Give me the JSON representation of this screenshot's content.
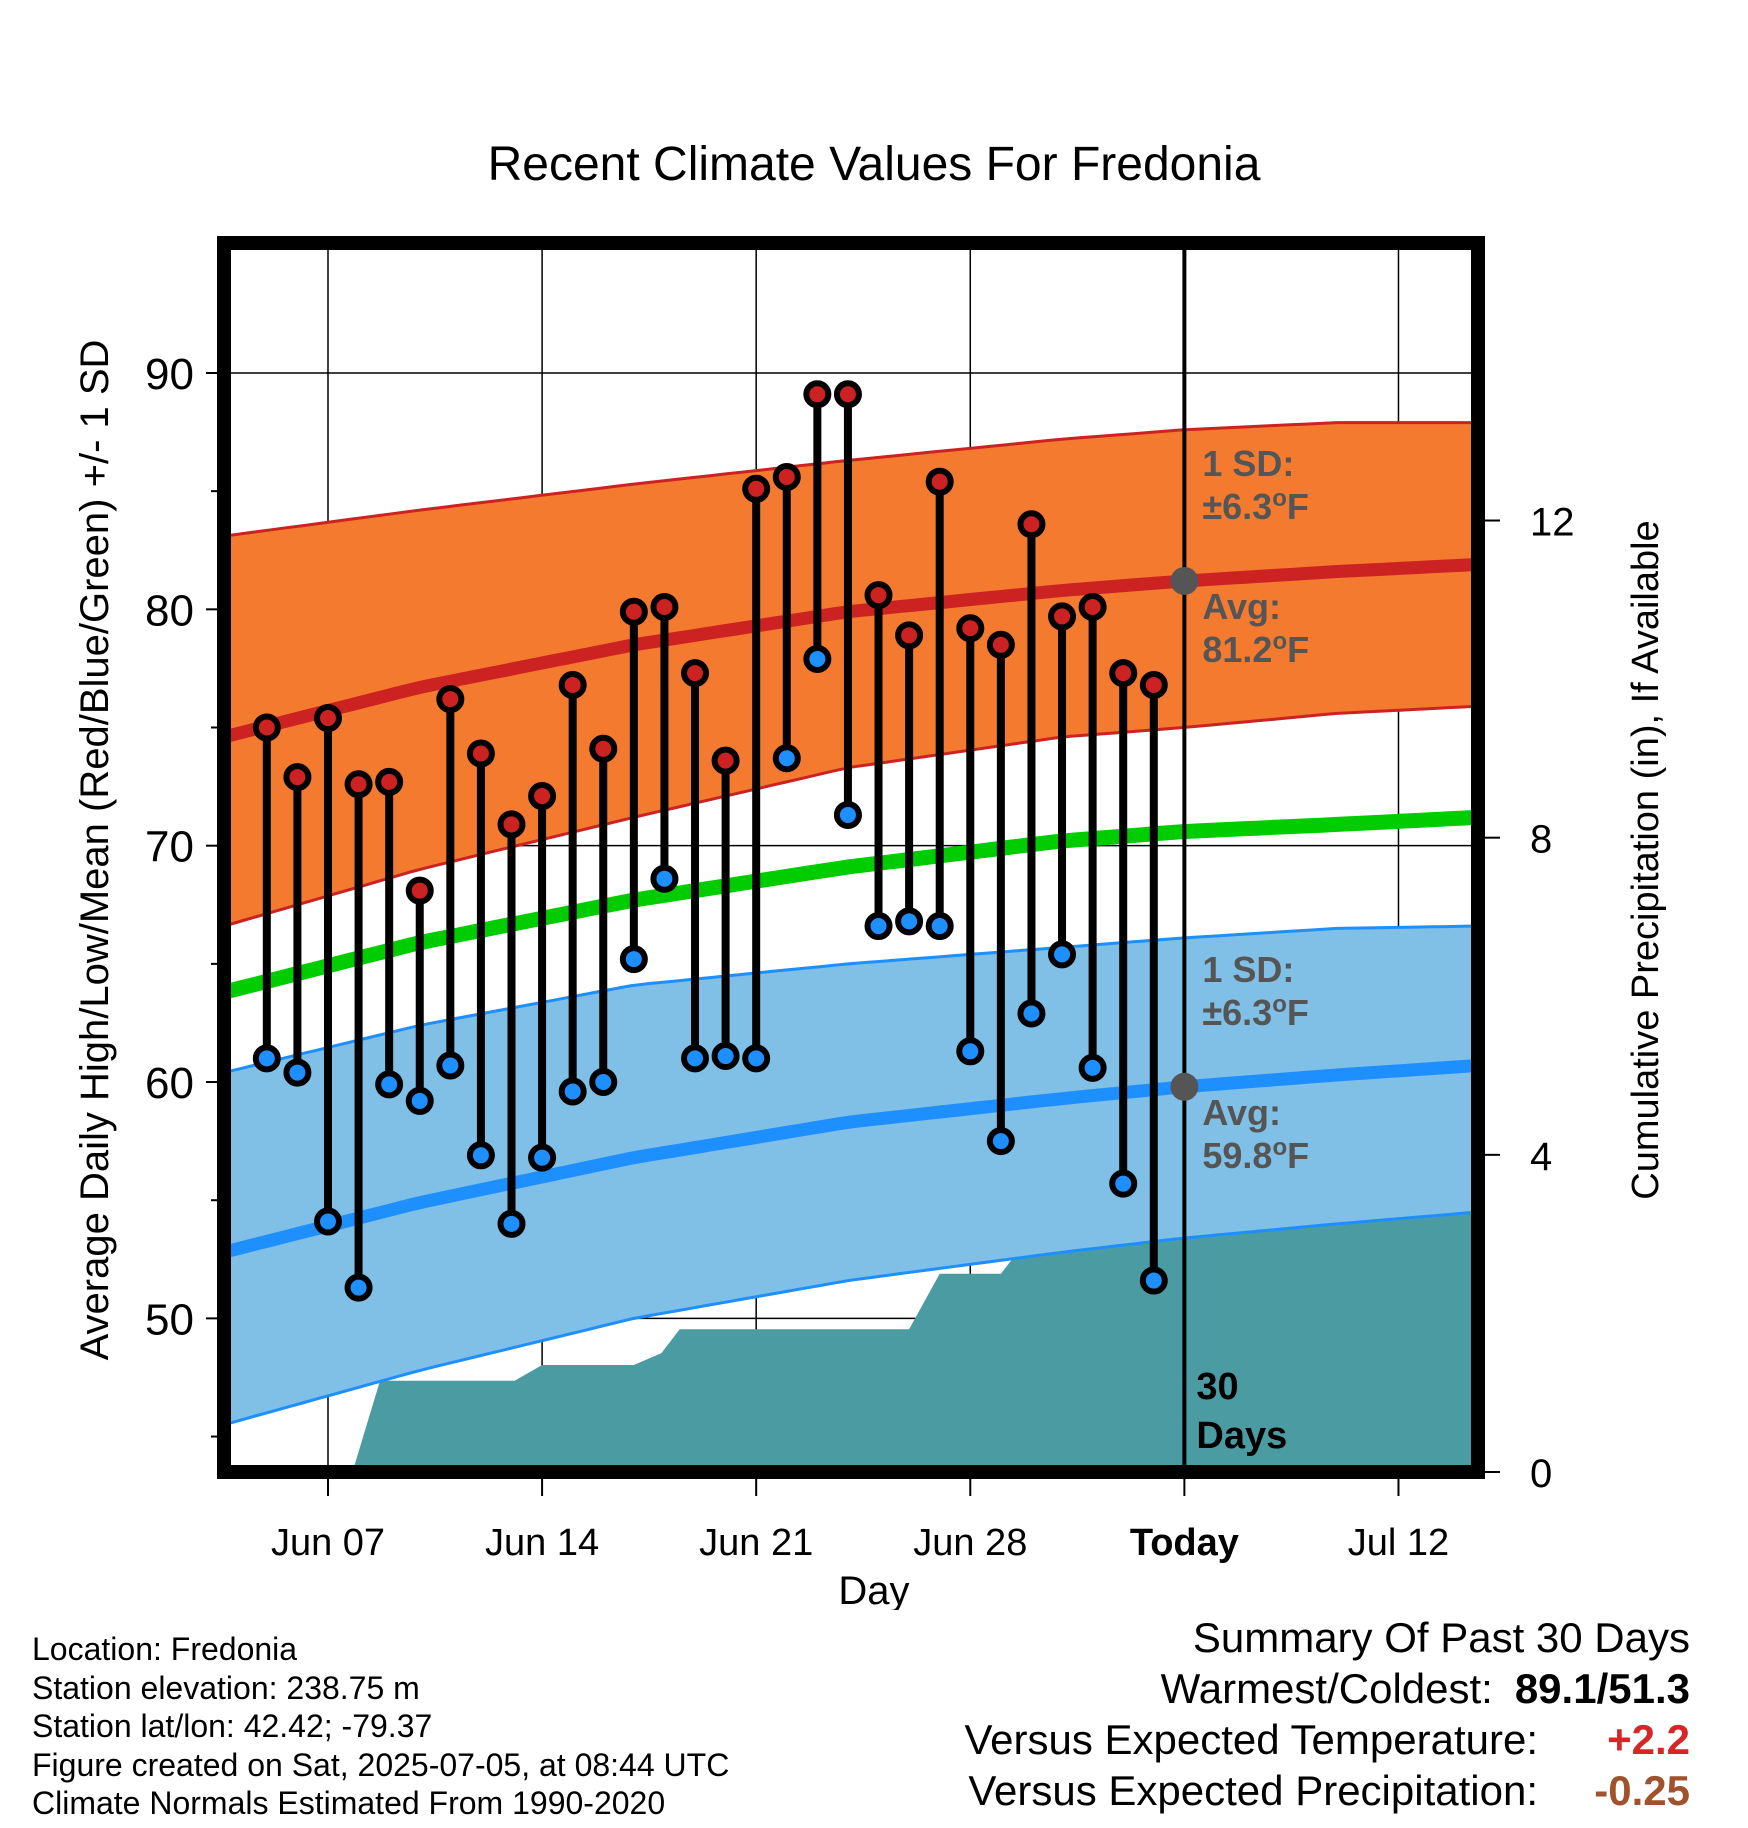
{
  "chart_data": {
    "type": "scatter",
    "title": "Recent Climate Values For Fredonia",
    "xlabel": "Day",
    "ylabel_left": "Average Daily High/Low/Mean (Red/Blue/Green) +/- 1 SD",
    "ylabel_right": "Cumulative Precipitation (in), If Available",
    "ylim": [
      43.5,
      95.5
    ],
    "ylim_right": [
      0,
      15.5
    ],
    "xlim": [
      3.6,
      44.6
    ],
    "yticks_left": [
      50,
      60,
      70,
      80,
      90
    ],
    "yticks_right": [
      0,
      4,
      8,
      12
    ],
    "xticks": [
      {
        "day": 7,
        "label": "Jun 07"
      },
      {
        "day": 14,
        "label": "Jun 14"
      },
      {
        "day": 21,
        "label": "Jun 21"
      },
      {
        "day": 28,
        "label": "Jun 28"
      },
      {
        "day": 35,
        "label": "Today"
      },
      {
        "day": 42,
        "label": "Jul 12"
      }
    ],
    "today_day": 35,
    "normal_high": {
      "x": [
        3.6,
        10,
        17,
        24,
        31,
        35,
        40,
        44.6
      ],
      "mean": [
        74.6,
        76.7,
        78.5,
        79.9,
        80.8,
        81.2,
        81.6,
        81.9
      ],
      "upper": [
        83.1,
        84.2,
        85.3,
        86.3,
        87.2,
        87.6,
        87.9,
        87.9
      ],
      "lower": [
        66.6,
        69.0,
        71.2,
        73.3,
        74.6,
        75.0,
        75.6,
        75.9
      ]
    },
    "normal_low": {
      "x": [
        3.6,
        10,
        17,
        24,
        31,
        35,
        40,
        44.6
      ],
      "mean": [
        52.8,
        54.9,
        56.8,
        58.3,
        59.3,
        59.8,
        60.3,
        60.7
      ],
      "upper": [
        60.4,
        62.4,
        64.1,
        65.0,
        65.7,
        66.1,
        66.5,
        66.6
      ],
      "lower": [
        45.5,
        47.8,
        50.0,
        51.6,
        52.8,
        53.4,
        54.0,
        54.5
      ]
    },
    "normal_mean": {
      "x": [
        3.6,
        10,
        17,
        24,
        31,
        35,
        40,
        44.6
      ],
      "values": [
        63.8,
        65.9,
        67.7,
        69.1,
        70.2,
        70.6,
        70.9,
        71.2
      ]
    },
    "observations": {
      "day": [
        5,
        6,
        7,
        8,
        9,
        10,
        11,
        12,
        13,
        14,
        15,
        16,
        17,
        18,
        19,
        20,
        21,
        22,
        23,
        24,
        25,
        26,
        27,
        28,
        29,
        30,
        31,
        32,
        33,
        34
      ],
      "high": [
        75.0,
        72.9,
        75.4,
        72.6,
        72.7,
        68.1,
        76.2,
        73.9,
        70.9,
        72.1,
        76.8,
        74.1,
        79.9,
        80.1,
        77.3,
        73.6,
        85.1,
        85.6,
        89.1,
        89.1,
        80.6,
        78.9,
        85.4,
        79.2,
        78.5,
        83.6,
        79.7,
        80.1,
        77.3,
        76.8
      ],
      "low": [
        61.0,
        60.4,
        54.1,
        51.3,
        59.9,
        59.2,
        60.7,
        56.9,
        54.0,
        56.8,
        59.6,
        60.0,
        65.2,
        68.6,
        61.0,
        61.1,
        61.0,
        73.7,
        77.9,
        71.3,
        66.6,
        66.8,
        66.6,
        61.3,
        57.5,
        62.9,
        65.4,
        60.6,
        55.7,
        51.6
      ]
    },
    "precipitation": {
      "day": [
        6.7,
        7.8,
        8.7,
        11,
        13.1,
        14.0,
        17,
        17.9,
        18.5,
        26.0,
        27.0,
        28.0,
        29.0,
        30.0,
        31.9,
        32.9,
        34.0,
        44.6
      ],
      "cumulative": [
        0.0,
        0.0,
        1.15,
        1.15,
        1.15,
        1.35,
        1.35,
        1.5,
        1.8,
        1.8,
        2.5,
        2.5,
        2.5,
        3.0,
        3.0,
        3.2,
        3.3,
        3.3
      ]
    },
    "annotations": {
      "high_sd_label": "1 SD:",
      "high_sd_value": "±6.3",
      "high_avg_label": "Avg:",
      "high_avg_value": "81.2",
      "low_sd_label": "1 SD:",
      "low_sd_value": "±6.3",
      "low_avg_label": "Avg:",
      "low_avg_value": "59.8",
      "degree_unit": "o",
      "temp_unit": "F",
      "days_count": "30",
      "days_label": "Days"
    },
    "colors": {
      "high_band": "#f47a2f",
      "high_line": "#cc2222",
      "low_band": "#80bfe6",
      "low_line": "#1e8fff",
      "mean_line": "#00cc00",
      "precip": "#4b9ba3",
      "high_dot": "#cc2222",
      "low_dot": "#1e8fff",
      "annotation_text": "#555555",
      "avg_marker": "#555555"
    }
  },
  "footer": {
    "location": "Location: Fredonia",
    "elevation": "Station elevation: 238.75 m",
    "latlon": "Station lat/lon: 42.42; -79.37",
    "created": "Figure created on Sat, 2025-07-05, at 08:44 UTC",
    "normals": "Climate Normals Estimated From 1990-2020"
  },
  "summary": {
    "title": "Summary Of Past 30 Days",
    "warmest_coldest_label": "Warmest/Coldest:",
    "warmest_coldest_value": "89.1/51.3",
    "temp_label": "Versus Expected Temperature:",
    "temp_value": "+2.2",
    "temp_color": "#d62728",
    "precip_label": "Versus Expected Precipitation:",
    "precip_value": "-0.25",
    "precip_color": "#a0522d"
  }
}
